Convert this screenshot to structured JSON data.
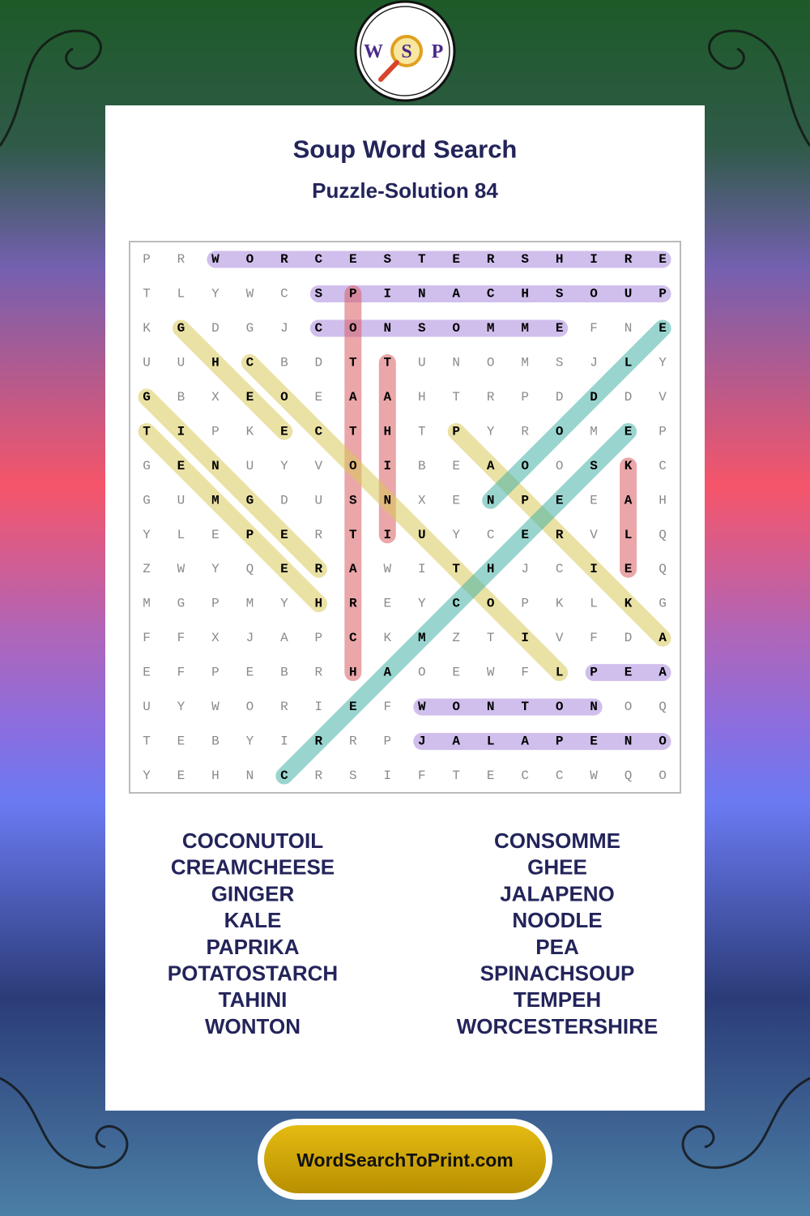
{
  "logo": {
    "letters": [
      "W",
      "S",
      "P"
    ]
  },
  "header": {
    "title": "Soup Word Search",
    "subtitle": "Puzzle-Solution 84"
  },
  "grid": {
    "rows": [
      [
        "P",
        "R",
        "W",
        "O",
        "R",
        "C",
        "E",
        "S",
        "T",
        "E",
        "R",
        "S",
        "H",
        "I",
        "R",
        "E"
      ],
      [
        "T",
        "L",
        "Y",
        "W",
        "C",
        "S",
        "P",
        "I",
        "N",
        "A",
        "C",
        "H",
        "S",
        "O",
        "U",
        "P"
      ],
      [
        "K",
        "G",
        "D",
        "G",
        "J",
        "C",
        "O",
        "N",
        "S",
        "O",
        "M",
        "M",
        "E",
        "F",
        "N",
        "E"
      ],
      [
        "U",
        "U",
        "H",
        "C",
        "B",
        "D",
        "T",
        "T",
        "U",
        "N",
        "O",
        "M",
        "S",
        "J",
        "L",
        "Y"
      ],
      [
        "G",
        "B",
        "X",
        "E",
        "O",
        "E",
        "A",
        "A",
        "H",
        "T",
        "R",
        "P",
        "D",
        "D",
        "D",
        "V"
      ],
      [
        "T",
        "I",
        "P",
        "K",
        "E",
        "C",
        "T",
        "H",
        "T",
        "P",
        "Y",
        "R",
        "O",
        "M",
        "E",
        "P"
      ],
      [
        "G",
        "E",
        "N",
        "U",
        "Y",
        "V",
        "O",
        "I",
        "B",
        "E",
        "A",
        "O",
        "O",
        "S",
        "K",
        "C"
      ],
      [
        "G",
        "U",
        "M",
        "G",
        "D",
        "U",
        "S",
        "N",
        "X",
        "E",
        "N",
        "P",
        "E",
        "E",
        "A",
        "H"
      ],
      [
        "Y",
        "L",
        "E",
        "P",
        "E",
        "R",
        "T",
        "I",
        "U",
        "Y",
        "C",
        "E",
        "R",
        "V",
        "L",
        "Q"
      ],
      [
        "Z",
        "W",
        "Y",
        "Q",
        "E",
        "R",
        "A",
        "W",
        "I",
        "T",
        "H",
        "J",
        "C",
        "I",
        "E",
        "Q"
      ],
      [
        "M",
        "G",
        "P",
        "M",
        "Y",
        "H",
        "R",
        "E",
        "Y",
        "C",
        "O",
        "P",
        "K",
        "L",
        "K",
        "G"
      ],
      [
        "F",
        "F",
        "X",
        "J",
        "A",
        "P",
        "C",
        "K",
        "M",
        "Z",
        "T",
        "I",
        "V",
        "F",
        "D",
        "A"
      ],
      [
        "E",
        "F",
        "P",
        "E",
        "B",
        "R",
        "H",
        "A",
        "O",
        "E",
        "W",
        "F",
        "L",
        "P",
        "E",
        "A"
      ],
      [
        "U",
        "Y",
        "W",
        "O",
        "R",
        "I",
        "E",
        "F",
        "W",
        "O",
        "N",
        "T",
        "O",
        "N",
        "O",
        "Q"
      ],
      [
        "T",
        "E",
        "B",
        "Y",
        "I",
        "R",
        "R",
        "P",
        "J",
        "A",
        "L",
        "A",
        "P",
        "E",
        "N",
        "O"
      ],
      [
        "Y",
        "E",
        "H",
        "N",
        "C",
        "R",
        "S",
        "I",
        "F",
        "T",
        "E",
        "C",
        "C",
        "W",
        "Q",
        "O"
      ]
    ],
    "highlights": [
      {
        "from": [
          0,
          2
        ],
        "to": [
          0,
          15
        ],
        "color": "#a98bdc"
      },
      {
        "from": [
          1,
          5
        ],
        "to": [
          1,
          15
        ],
        "color": "#a98bdc"
      },
      {
        "from": [
          2,
          5
        ],
        "to": [
          2,
          12
        ],
        "color": "#a98bdc"
      },
      {
        "from": [
          12,
          13
        ],
        "to": [
          12,
          15
        ],
        "color": "#a98bdc"
      },
      {
        "from": [
          13,
          8
        ],
        "to": [
          13,
          13
        ],
        "color": "#a98bdc"
      },
      {
        "from": [
          14,
          8
        ],
        "to": [
          14,
          15
        ],
        "color": "#a98bdc"
      },
      {
        "from": [
          1,
          6
        ],
        "to": [
          12,
          6
        ],
        "color": "#d95c63"
      },
      {
        "from": [
          3,
          7
        ],
        "to": [
          8,
          7
        ],
        "color": "#d95c63"
      },
      {
        "from": [
          6,
          14
        ],
        "to": [
          9,
          14
        ],
        "color": "#d95c63"
      },
      {
        "from": [
          2,
          1
        ],
        "to": [
          5,
          4
        ],
        "color": "#d9c85a"
      },
      {
        "from": [
          3,
          3
        ],
        "to": [
          12,
          12
        ],
        "color": "#d9c85a"
      },
      {
        "from": [
          4,
          0
        ],
        "to": [
          9,
          5
        ],
        "color": "#d9c85a"
      },
      {
        "from": [
          5,
          0
        ],
        "to": [
          10,
          5
        ],
        "color": "#d9c85a"
      },
      {
        "from": [
          5,
          9
        ],
        "to": [
          11,
          15
        ],
        "color": "#d9c85a"
      },
      {
        "from": [
          15,
          4
        ],
        "to": [
          5,
          14
        ],
        "color": "#45b3a6"
      },
      {
        "from": [
          7,
          10
        ],
        "to": [
          2,
          15
        ],
        "color": "#45b3a6"
      }
    ]
  },
  "word_list": {
    "left": [
      "COCONUTOIL",
      "CREAMCHEESE",
      "GINGER",
      "KALE",
      "PAPRIKA",
      "POTATOSTARCH",
      "TAHINI",
      "WONTON"
    ],
    "right": [
      "CONSOMME",
      "GHEE",
      "JALAPENO",
      "NOODLE",
      "PEA",
      "SPINACHSOUP",
      "TEMPEH",
      "WORCESTERSHIRE"
    ]
  },
  "footer": {
    "site": "WordSearchToPrint.com"
  }
}
